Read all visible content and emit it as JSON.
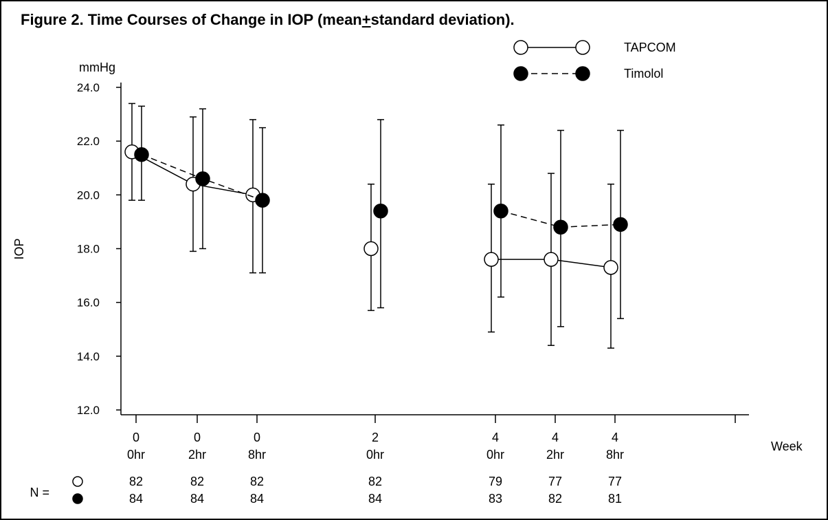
{
  "chart_data": {
    "type": "line",
    "title_prefix": "Figure 2. Time Courses of Change in IOP (mean",
    "title_pm": "+",
    "title_suffix": "standard deviation).",
    "ylabel": "IOP",
    "yunit": "mmHg",
    "xunit_label": "Week",
    "ylim": [
      12.0,
      24.0
    ],
    "yticks": [
      "12.0",
      "14.0",
      "16.0",
      "18.0",
      "20.0",
      "22.0",
      "24.0"
    ],
    "categories": [
      {
        "week": "0",
        "hour": "0hr"
      },
      {
        "week": "0",
        "hour": "2hr"
      },
      {
        "week": "0",
        "hour": "8hr"
      },
      {
        "week": "2",
        "hour": "0hr"
      },
      {
        "week": "4",
        "hour": "0hr"
      },
      {
        "week": "4",
        "hour": "2hr"
      },
      {
        "week": "4",
        "hour": "8hr"
      }
    ],
    "series": [
      {
        "name": "TAPCOM",
        "marker": "open-circle",
        "line": "solid",
        "mean": [
          21.6,
          20.4,
          20.0,
          18.0,
          17.6,
          17.6,
          17.3
        ],
        "upper": [
          23.4,
          22.9,
          22.8,
          20.4,
          20.4,
          20.8,
          20.4
        ],
        "lower": [
          19.8,
          17.9,
          17.1,
          15.7,
          14.9,
          14.4,
          14.3
        ],
        "connected_segments": [
          [
            0,
            1,
            2
          ],
          [
            4,
            5,
            6
          ]
        ],
        "n": [
          "82",
          "82",
          "82",
          "82",
          "79",
          "77",
          "77"
        ]
      },
      {
        "name": "Timolol",
        "marker": "filled-circle",
        "line": "dashed",
        "mean": [
          21.5,
          20.6,
          19.8,
          19.4,
          19.4,
          18.8,
          18.9
        ],
        "upper": [
          23.3,
          23.2,
          22.5,
          22.8,
          22.6,
          22.4,
          22.4
        ],
        "lower": [
          19.8,
          18.0,
          17.1,
          15.8,
          16.2,
          15.1,
          15.4
        ],
        "connected_segments": [
          [
            0,
            1,
            2
          ],
          [
            4,
            5,
            6
          ]
        ],
        "n": [
          "84",
          "84",
          "84",
          "84",
          "83",
          "82",
          "81"
        ]
      }
    ],
    "n_label": "N ="
  }
}
